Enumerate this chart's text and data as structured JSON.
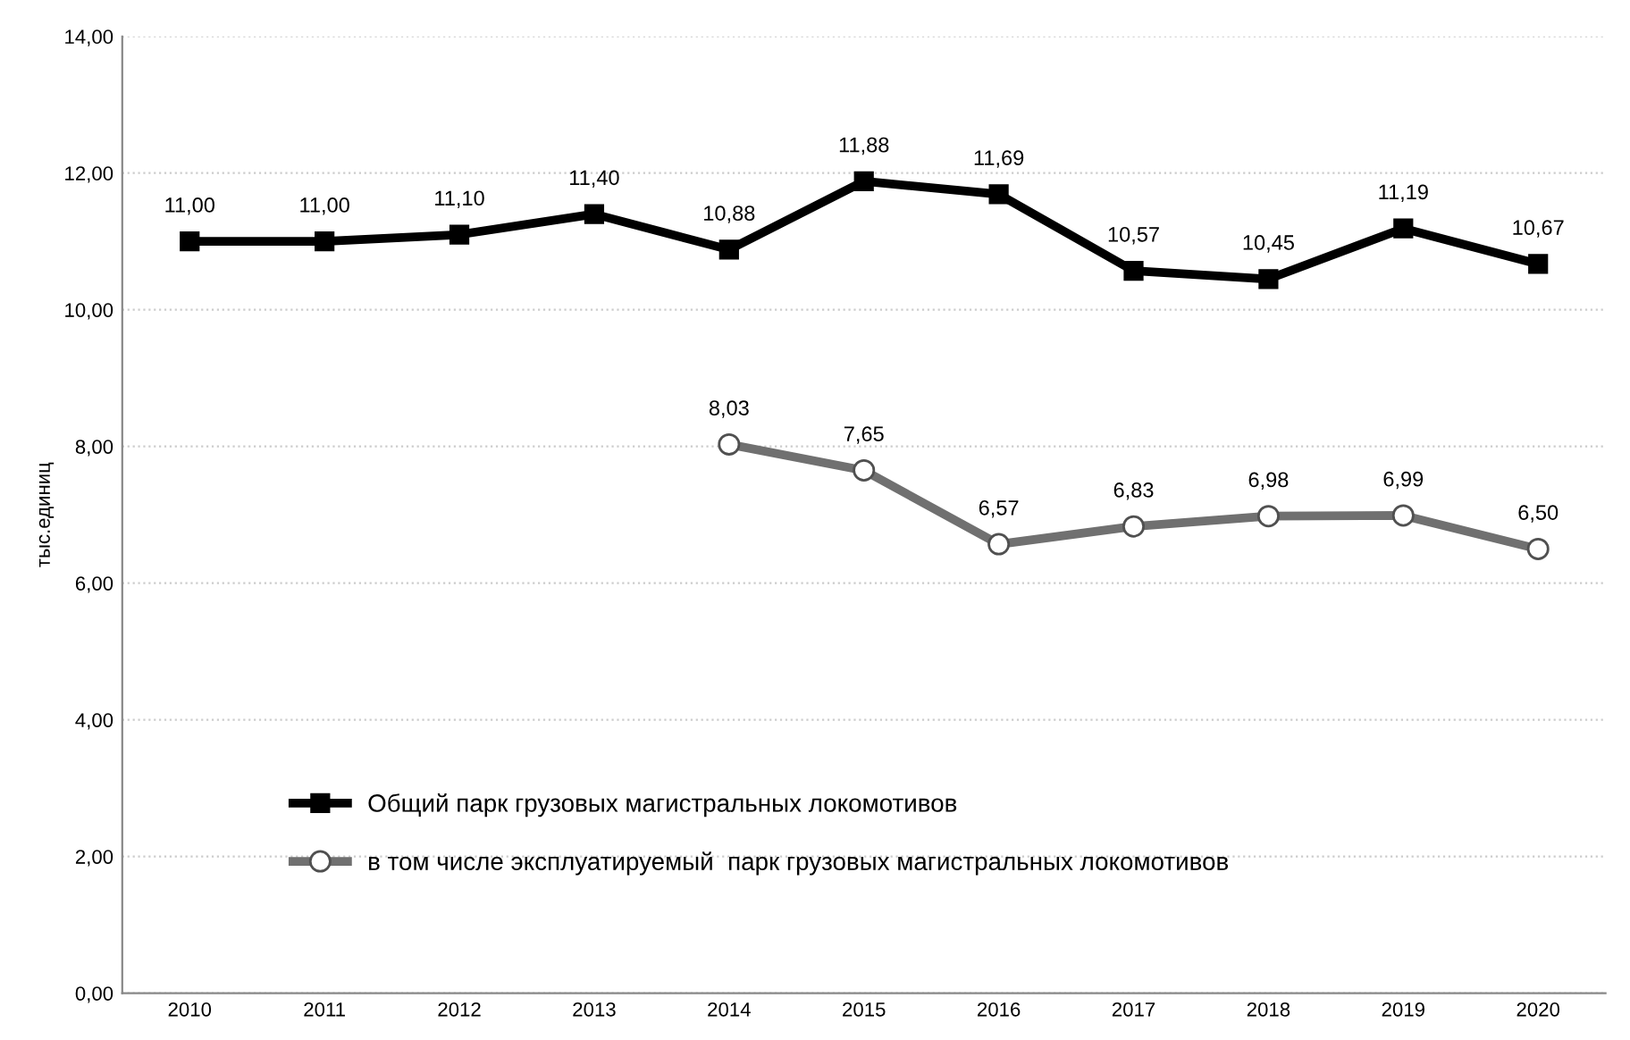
{
  "chart_data": {
    "type": "line",
    "ylabel": "тыс.единиц",
    "categories": [
      "2010",
      "2011",
      "2012",
      "2013",
      "2014",
      "2015",
      "2016",
      "2017",
      "2018",
      "2019",
      "2020"
    ],
    "series": [
      {
        "name": "Общий парк грузовых магистральных локомотивов",
        "color": "#000000",
        "marker": "square",
        "values": [
          11.0,
          11.0,
          11.1,
          11.4,
          10.88,
          11.88,
          11.69,
          10.57,
          10.45,
          11.19,
          10.67
        ],
        "value_labels": [
          "11,00",
          "11,00",
          "11,10",
          "11,40",
          "10,88",
          "11,88",
          "11,69",
          "10,57",
          "10,45",
          "11,19",
          "10,67"
        ]
      },
      {
        "name": "в том числе эксплуатируемый  парк грузовых магистральных локомотивов",
        "color": "#707070",
        "marker": "circle",
        "values": [
          null,
          null,
          null,
          null,
          8.03,
          7.65,
          6.57,
          6.83,
          6.98,
          6.99,
          6.5
        ],
        "value_labels": [
          null,
          null,
          null,
          null,
          "8,03",
          "7,65",
          "6,57",
          "6,83",
          "6,98",
          "6,99",
          "6,50"
        ]
      }
    ],
    "ylim": [
      0,
      14
    ],
    "yticks": [
      {
        "value": 0,
        "label": "0,00"
      },
      {
        "value": 2,
        "label": "2,00"
      },
      {
        "value": 4,
        "label": "4,00"
      },
      {
        "value": 6,
        "label": "6,00"
      },
      {
        "value": 8,
        "label": "8,00"
      },
      {
        "value": 10,
        "label": "10,00"
      },
      {
        "value": 12,
        "label": "12,00"
      },
      {
        "value": 14,
        "label": "14,00"
      }
    ],
    "grid": "y",
    "legend": "bottom left",
    "line_style": "solid"
  }
}
